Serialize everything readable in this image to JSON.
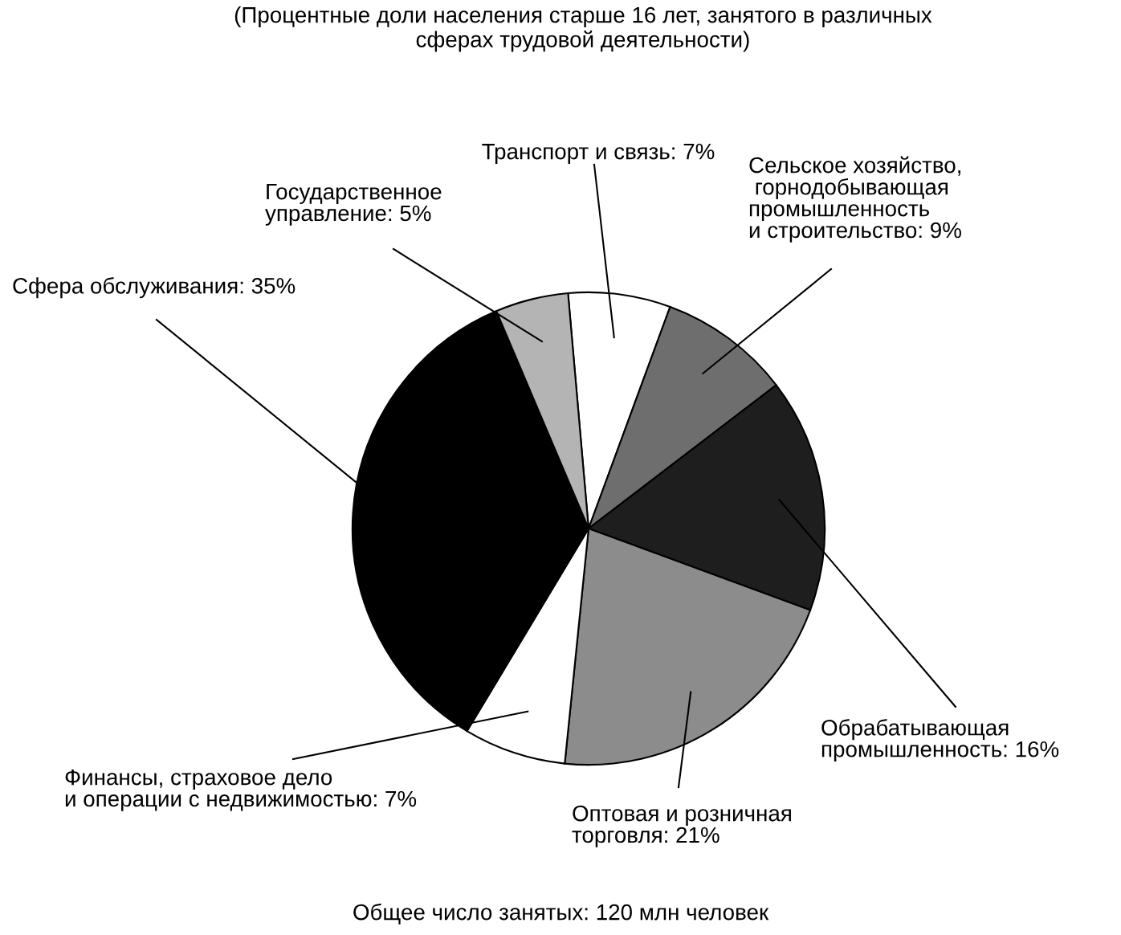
{
  "chart_data": {
    "type": "pie",
    "title": "(Процентные доли населения старше 16 лет, занятого в различных\nсферах трудовой деятельности)",
    "categories": [
      "Транспорт и связь",
      "Сельское хозяйство,\n горнодобывающая\nпромышленность\nи строительство",
      "Обрабатывающая\nпромышленность",
      "Оптовая и розничная\nторговля",
      "Финансы, страховое дело\nи операции с недвижимостью",
      "Сфера обслуживания",
      "Государственное\nуправление"
    ],
    "values": [
      7,
      9,
      16,
      21,
      7,
      35,
      5
    ],
    "value_labels": [
      "7%",
      "9%",
      "16%",
      "21%",
      "7%",
      "35%",
      "5%"
    ],
    "colors": [
      "#ffffff",
      "#6e6e6e",
      "#1e1e1e",
      "#8c8c8c",
      "#ffffff",
      "#000000",
      "#b4b4b4"
    ],
    "annotations": [
      "Общее число занятых: 120 млн человек"
    ],
    "legend": false
  }
}
